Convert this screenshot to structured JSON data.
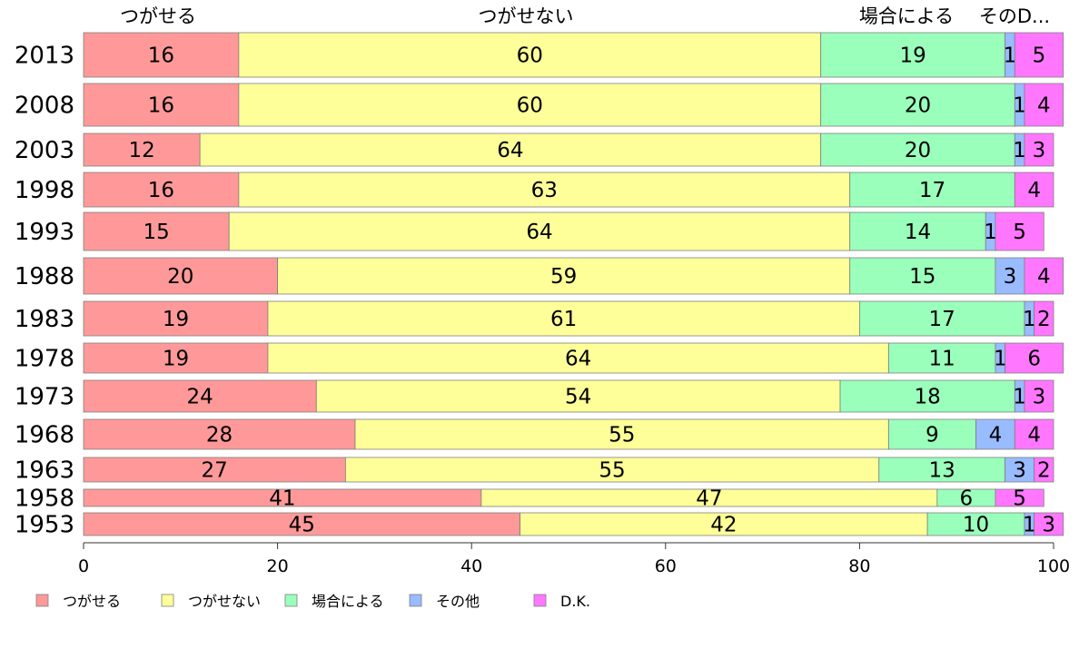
{
  "chart_data": {
    "type": "bar",
    "orientation": "horizontal",
    "stacked": true,
    "title": "",
    "xlabel": "",
    "ylabel": "",
    "xlim": [
      0,
      100
    ],
    "x_ticks": [
      "0",
      "20",
      "40",
      "60",
      "80",
      "100"
    ],
    "legend_position": "bottom",
    "grid": false,
    "categories": [
      "2013",
      "2008",
      "2003",
      "1998",
      "1993",
      "1988",
      "1983",
      "1978",
      "1973",
      "1968",
      "1963",
      "1958",
      "1953"
    ],
    "series": [
      {
        "name": "つがせる",
        "header": "つがせる",
        "color": "#FF9999",
        "values": [
          16,
          16,
          12,
          16,
          15,
          20,
          19,
          19,
          24,
          28,
          27,
          41,
          45
        ]
      },
      {
        "name": "つがせない",
        "header": "つがせない",
        "color": "#FFFF99",
        "values": [
          60,
          60,
          64,
          63,
          64,
          59,
          61,
          64,
          54,
          55,
          55,
          47,
          42
        ]
      },
      {
        "name": "場合による",
        "header": "場合による",
        "color": "#99FFBB",
        "values": [
          19,
          20,
          20,
          17,
          14,
          15,
          17,
          11,
          18,
          9,
          13,
          6,
          10
        ]
      },
      {
        "name": "その他",
        "header": "そのD...",
        "color": "#99BBFF",
        "values": [
          1,
          1,
          1,
          0,
          1,
          3,
          1,
          1,
          1,
          4,
          3,
          0,
          1
        ]
      },
      {
        "name": "D.K.",
        "header": "",
        "color": "#FF77FF",
        "values": [
          5,
          4,
          3,
          4,
          5,
          4,
          2,
          6,
          3,
          4,
          2,
          5,
          3
        ]
      }
    ]
  }
}
